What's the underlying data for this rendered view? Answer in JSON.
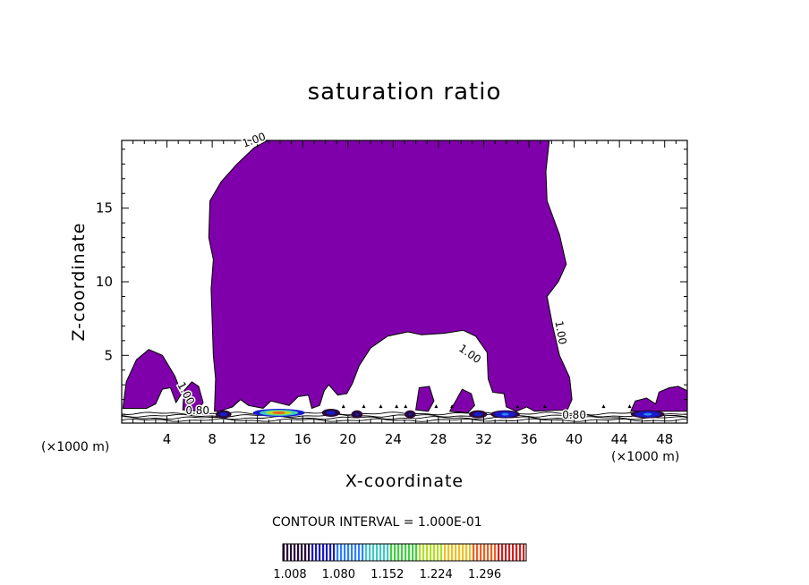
{
  "chart_data": {
    "type": "contour",
    "title": "saturation ratio",
    "xlabel": "X-coordinate",
    "ylabel": "Z-coordinate",
    "x_unit_note": "(×1000 m)",
    "contour_interval_text": "CONTOUR INTERVAL = 1.000E-01",
    "xlim": [
      0,
      50
    ],
    "ylim": [
      0.4,
      19.6
    ],
    "x_ticks": [
      4,
      8,
      12,
      16,
      20,
      24,
      28,
      32,
      36,
      40,
      44,
      48
    ],
    "y_ticks": [
      5,
      10,
      15
    ],
    "x_tick_labels": [
      "4",
      "8",
      "12",
      "16",
      "20",
      "24",
      "28",
      "32",
      "36",
      "40",
      "44",
      "48"
    ],
    "y_tick_labels": [
      "5",
      "10",
      "15"
    ],
    "contour_labels": [
      {
        "text": "1.00",
        "x": 11.8,
        "y": 19.4,
        "angle": -20
      },
      {
        "text": "1.00",
        "x": 5.4,
        "y": 2.3,
        "angle": 62
      },
      {
        "text": "1.00",
        "x": 30.6,
        "y": 4.9,
        "angle": 35
      },
      {
        "text": "1.00",
        "x": 38.5,
        "y": 6.5,
        "angle": 80
      },
      {
        "text": "0.80",
        "x": 6.7,
        "y": 1.0,
        "angle": 0
      },
      {
        "text": "0.80",
        "x": 40.0,
        "y": 0.7,
        "angle": 0
      }
    ],
    "colorbar": {
      "labels": [
        "1.008",
        "1.080",
        "1.152",
        "1.224",
        "1.296"
      ],
      "min": 1.008,
      "max": 1.368,
      "colors": [
        "#2a0a3a",
        "#1a1acc",
        "#2a80ff",
        "#40c8c8",
        "#40d040",
        "#b0e020",
        "#f0c020",
        "#f06020",
        "#d02020"
      ]
    },
    "fill_color": "#7f00aa",
    "supersaturated_region": {
      "description_level_min": 1.0,
      "outline": [
        [
          8.2,
          1.2
        ],
        [
          8.3,
          3.4
        ],
        [
          8.1,
          5.0
        ],
        [
          7.9,
          9.5
        ],
        [
          8.1,
          11.5
        ],
        [
          7.7,
          13.0
        ],
        [
          7.8,
          15.5
        ],
        [
          8.8,
          16.8
        ],
        [
          10.2,
          18.0
        ],
        [
          11.7,
          19.1
        ],
        [
          12.9,
          19.6
        ],
        [
          37.8,
          19.6
        ],
        [
          37.5,
          17.5
        ],
        [
          37.6,
          15.5
        ],
        [
          38.7,
          13.2
        ],
        [
          39.3,
          11.2
        ],
        [
          38.6,
          10.0
        ],
        [
          37.6,
          9.0
        ],
        [
          38.1,
          7.0
        ],
        [
          38.7,
          5.0
        ],
        [
          39.6,
          3.5
        ],
        [
          39.8,
          2.0
        ],
        [
          39.4,
          1.3
        ],
        [
          36.5,
          1.2
        ],
        [
          35.8,
          1.5
        ],
        [
          34.9,
          1.2
        ],
        [
          34.0,
          1.5
        ],
        [
          33.8,
          2.4
        ],
        [
          32.8,
          2.5
        ],
        [
          32.4,
          3.4
        ],
        [
          32.3,
          5.2
        ],
        [
          31.3,
          6.3
        ],
        [
          30.2,
          6.7
        ],
        [
          28.5,
          6.5
        ],
        [
          26.5,
          6.4
        ],
        [
          25.3,
          6.6
        ],
        [
          23.5,
          6.3
        ],
        [
          22.0,
          5.5
        ],
        [
          21.0,
          4.3
        ],
        [
          20.4,
          3.1
        ],
        [
          19.9,
          2.4
        ],
        [
          19.1,
          2.3
        ],
        [
          18.3,
          3.0
        ],
        [
          17.9,
          2.6
        ],
        [
          17.5,
          1.6
        ],
        [
          16.8,
          1.4
        ],
        [
          16.5,
          2.3
        ],
        [
          15.6,
          2.2
        ],
        [
          14.8,
          1.6
        ],
        [
          13.2,
          1.9
        ],
        [
          12.5,
          1.4
        ],
        [
          11.2,
          1.6
        ],
        [
          10.5,
          2.0
        ],
        [
          9.8,
          1.5
        ],
        [
          9.0,
          1.3
        ],
        [
          8.6,
          1.2
        ]
      ],
      "small_patches": [
        [
          [
            0.1,
            1.4
          ],
          [
            0.4,
            3.2
          ],
          [
            1.3,
            4.7
          ],
          [
            2.4,
            5.4
          ],
          [
            3.6,
            5.0
          ],
          [
            4.7,
            3.6
          ],
          [
            5.3,
            2.4
          ],
          [
            4.8,
            1.8
          ],
          [
            4.3,
            2.8
          ],
          [
            3.6,
            2.7
          ],
          [
            3.0,
            1.7
          ],
          [
            2.2,
            1.4
          ]
        ],
        [
          [
            5.4,
            1.3
          ],
          [
            5.5,
            2.6
          ],
          [
            6.2,
            3.2
          ],
          [
            6.8,
            2.9
          ],
          [
            7.2,
            1.8
          ],
          [
            6.7,
            1.2
          ]
        ],
        [
          [
            29.0,
            1.2
          ],
          [
            29.6,
            2.0
          ],
          [
            30.1,
            2.7
          ],
          [
            30.9,
            2.4
          ],
          [
            31.2,
            1.6
          ],
          [
            30.6,
            1.1
          ]
        ],
        [
          [
            26.0,
            1.3
          ],
          [
            26.3,
            2.8
          ],
          [
            27.2,
            2.9
          ],
          [
            27.6,
            1.9
          ],
          [
            27.1,
            1.2
          ]
        ],
        [
          [
            45.0,
            1.2
          ],
          [
            45.4,
            1.9
          ],
          [
            46.4,
            2.1
          ],
          [
            47.2,
            1.7
          ],
          [
            47.5,
            2.5
          ],
          [
            48.4,
            2.8
          ],
          [
            49.2,
            2.9
          ],
          [
            50.0,
            2.6
          ],
          [
            50.0,
            1.2
          ]
        ]
      ]
    },
    "hotspots": [
      {
        "x": 13.9,
        "y": 1.1,
        "value": 1.3,
        "halfwidth": 2.3
      },
      {
        "x": 33.9,
        "y": 1.0,
        "value": 1.1,
        "halfwidth": 1.3
      },
      {
        "x": 46.5,
        "y": 1.0,
        "value": 1.09,
        "halfwidth": 1.5
      },
      {
        "x": 9.0,
        "y": 1.0,
        "value": 1.08,
        "halfwidth": 0.7
      },
      {
        "x": 20.8,
        "y": 1.0,
        "value": 1.06,
        "halfwidth": 0.5
      },
      {
        "x": 31.5,
        "y": 1.0,
        "value": 1.07,
        "halfwidth": 0.8
      },
      {
        "x": 25.5,
        "y": 1.0,
        "value": 1.05,
        "halfwidth": 0.5
      },
      {
        "x": 18.5,
        "y": 1.1,
        "value": 1.07,
        "halfwidth": 0.8
      }
    ],
    "grid": false,
    "legend": "colorbar-bottom"
  }
}
